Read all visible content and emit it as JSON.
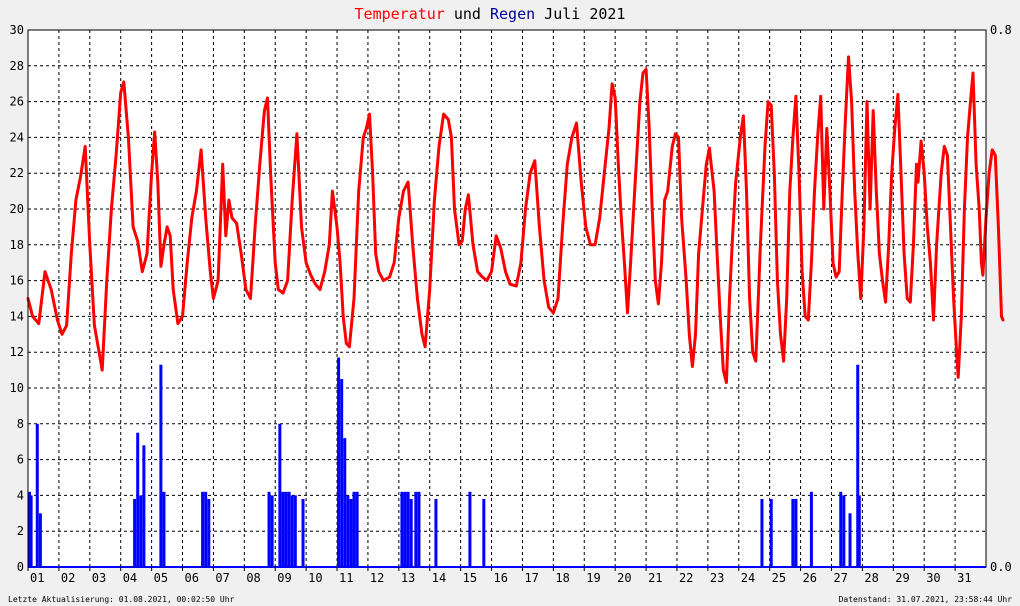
{
  "title": {
    "part1": "Temperatur",
    "part2": " und ",
    "part3": "Regen",
    "part4": " Juli 2021",
    "color1": "#ff0000",
    "color2": "#000000",
    "color3": "#000099",
    "color4": "#000000"
  },
  "footer": {
    "left": "Letzte Aktualisierung: 01.08.2021, 00:02:50 Uhr",
    "right": "Datenstand: 31.07.2021, 23:58:44 Uhr"
  },
  "chart_data": {
    "type": "line",
    "x_unit": "day of July 2021",
    "x_ticks": [
      "01",
      "02",
      "03",
      "04",
      "05",
      "06",
      "07",
      "08",
      "09",
      "10",
      "11",
      "12",
      "13",
      "14",
      "15",
      "16",
      "17",
      "18",
      "19",
      "20",
      "21",
      "22",
      "23",
      "24",
      "25",
      "26",
      "27",
      "28",
      "29",
      "30",
      "31"
    ],
    "xlim": [
      1,
      32
    ],
    "ylim_left": [
      0,
      30
    ],
    "y_ticks_left": [
      "0",
      "2",
      "4",
      "6",
      "8",
      "10",
      "12",
      "14",
      "16",
      "18",
      "20",
      "22",
      "24",
      "26",
      "28",
      "30"
    ],
    "ylim_right": [
      0,
      0.8
    ],
    "y_ticks_right": [
      "0.0",
      "0.8"
    ],
    "grid": true,
    "series": [
      {
        "color": "#ff0000",
        "axis": "left",
        "points": [
          [
            1.0,
            15.0
          ],
          [
            1.15,
            14.0
          ],
          [
            1.35,
            13.6
          ],
          [
            1.55,
            16.5
          ],
          [
            1.75,
            15.5
          ],
          [
            1.95,
            13.8
          ],
          [
            2.1,
            13.0
          ],
          [
            2.25,
            13.5
          ],
          [
            2.4,
            17.5
          ],
          [
            2.55,
            20.5
          ],
          [
            2.7,
            21.8
          ],
          [
            2.85,
            23.5
          ],
          [
            3.0,
            18.0
          ],
          [
            3.15,
            13.5
          ],
          [
            3.3,
            12.0
          ],
          [
            3.4,
            11.0
          ],
          [
            3.55,
            16.0
          ],
          [
            3.7,
            20.0
          ],
          [
            3.85,
            23.0
          ],
          [
            4.0,
            26.5
          ],
          [
            4.1,
            27.1
          ],
          [
            4.25,
            24.0
          ],
          [
            4.4,
            19.0
          ],
          [
            4.55,
            18.2
          ],
          [
            4.7,
            16.5
          ],
          [
            4.85,
            17.5
          ],
          [
            5.0,
            22.0
          ],
          [
            5.1,
            24.3
          ],
          [
            5.2,
            21.5
          ],
          [
            5.3,
            16.8
          ],
          [
            5.4,
            18.0
          ],
          [
            5.5,
            19.0
          ],
          [
            5.6,
            18.5
          ],
          [
            5.7,
            15.5
          ],
          [
            5.85,
            13.6
          ],
          [
            6.0,
            14.0
          ],
          [
            6.15,
            17.0
          ],
          [
            6.3,
            19.5
          ],
          [
            6.45,
            21.0
          ],
          [
            6.6,
            23.3
          ],
          [
            6.75,
            19.5
          ],
          [
            6.9,
            16.5
          ],
          [
            7.0,
            15.0
          ],
          [
            7.15,
            16.0
          ],
          [
            7.3,
            22.5
          ],
          [
            7.4,
            18.5
          ],
          [
            7.5,
            20.5
          ],
          [
            7.6,
            19.5
          ],
          [
            7.75,
            19.2
          ],
          [
            7.9,
            17.5
          ],
          [
            8.05,
            15.5
          ],
          [
            8.2,
            15.0
          ],
          [
            8.35,
            19.0
          ],
          [
            8.5,
            22.5
          ],
          [
            8.65,
            25.5
          ],
          [
            8.75,
            26.2
          ],
          [
            8.85,
            22.0
          ],
          [
            9.0,
            17.0
          ],
          [
            9.1,
            15.5
          ],
          [
            9.25,
            15.3
          ],
          [
            9.4,
            16.0
          ],
          [
            9.55,
            20.5
          ],
          [
            9.7,
            24.2
          ],
          [
            9.85,
            19.0
          ],
          [
            10.0,
            17.0
          ],
          [
            10.15,
            16.3
          ],
          [
            10.3,
            15.8
          ],
          [
            10.45,
            15.5
          ],
          [
            10.6,
            16.5
          ],
          [
            10.75,
            18.0
          ],
          [
            10.85,
            21.0
          ],
          [
            11.0,
            19.0
          ],
          [
            11.1,
            17.0
          ],
          [
            11.2,
            14.0
          ],
          [
            11.3,
            12.5
          ],
          [
            11.4,
            12.3
          ],
          [
            11.55,
            15.0
          ],
          [
            11.7,
            21.0
          ],
          [
            11.85,
            24.0
          ],
          [
            11.95,
            24.5
          ],
          [
            12.05,
            25.3
          ],
          [
            12.15,
            22.0
          ],
          [
            12.25,
            17.5
          ],
          [
            12.35,
            16.5
          ],
          [
            12.5,
            16.0
          ],
          [
            12.7,
            16.2
          ],
          [
            12.85,
            17.0
          ],
          [
            13.0,
            19.5
          ],
          [
            13.15,
            21.0
          ],
          [
            13.3,
            21.5
          ],
          [
            13.45,
            18.0
          ],
          [
            13.6,
            15.0
          ],
          [
            13.75,
            13.0
          ],
          [
            13.85,
            12.3
          ],
          [
            14.0,
            15.5
          ],
          [
            14.15,
            20.5
          ],
          [
            14.3,
            23.5
          ],
          [
            14.45,
            25.3
          ],
          [
            14.6,
            25.0
          ],
          [
            14.7,
            24.0
          ],
          [
            14.8,
            20.0
          ],
          [
            14.95,
            18.0
          ],
          [
            15.05,
            18.2
          ],
          [
            15.15,
            20.0
          ],
          [
            15.25,
            20.8
          ],
          [
            15.4,
            18.0
          ],
          [
            15.55,
            16.5
          ],
          [
            15.7,
            16.2
          ],
          [
            15.85,
            16.0
          ],
          [
            16.0,
            16.5
          ],
          [
            16.15,
            18.5
          ],
          [
            16.3,
            17.8
          ],
          [
            16.45,
            16.5
          ],
          [
            16.6,
            15.8
          ],
          [
            16.8,
            15.7
          ],
          [
            16.95,
            17.0
          ],
          [
            17.1,
            20.0
          ],
          [
            17.25,
            22.0
          ],
          [
            17.4,
            22.7
          ],
          [
            17.55,
            19.0
          ],
          [
            17.7,
            16.0
          ],
          [
            17.85,
            14.5
          ],
          [
            18.0,
            14.2
          ],
          [
            18.15,
            15.0
          ],
          [
            18.3,
            19.0
          ],
          [
            18.45,
            22.5
          ],
          [
            18.6,
            24.0
          ],
          [
            18.75,
            24.8
          ],
          [
            18.9,
            21.5
          ],
          [
            19.05,
            19.0
          ],
          [
            19.2,
            18.0
          ],
          [
            19.35,
            18.0
          ],
          [
            19.5,
            19.5
          ],
          [
            19.65,
            22.0
          ],
          [
            19.8,
            24.5
          ],
          [
            19.9,
            27.0
          ],
          [
            20.0,
            26.2
          ],
          [
            20.1,
            22.5
          ],
          [
            20.2,
            19.5
          ],
          [
            20.3,
            17.0
          ],
          [
            20.4,
            14.2
          ],
          [
            20.5,
            17.0
          ],
          [
            20.65,
            21.5
          ],
          [
            20.8,
            26.0
          ],
          [
            20.9,
            27.6
          ],
          [
            21.0,
            27.8
          ],
          [
            21.1,
            24.5
          ],
          [
            21.2,
            20.0
          ],
          [
            21.3,
            16.0
          ],
          [
            21.4,
            14.7
          ],
          [
            21.5,
            17.0
          ],
          [
            21.6,
            20.5
          ],
          [
            21.7,
            21.0
          ],
          [
            21.85,
            23.5
          ],
          [
            21.95,
            24.2
          ],
          [
            22.05,
            24.0
          ],
          [
            22.15,
            19.5
          ],
          [
            22.3,
            16.0
          ],
          [
            22.4,
            13.0
          ],
          [
            22.5,
            11.2
          ],
          [
            22.6,
            13.0
          ],
          [
            22.7,
            17.5
          ],
          [
            22.85,
            20.5
          ],
          [
            22.95,
            22.5
          ],
          [
            23.05,
            23.4
          ],
          [
            23.2,
            21.0
          ],
          [
            23.3,
            17.5
          ],
          [
            23.4,
            14.0
          ],
          [
            23.5,
            11.0
          ],
          [
            23.6,
            10.3
          ],
          [
            23.7,
            15.0
          ],
          [
            23.8,
            18.5
          ],
          [
            23.9,
            21.5
          ],
          [
            24.05,
            24.0
          ],
          [
            24.15,
            25.2
          ],
          [
            24.25,
            21.0
          ],
          [
            24.35,
            15.0
          ],
          [
            24.45,
            12.0
          ],
          [
            24.55,
            11.5
          ],
          [
            24.7,
            18.0
          ],
          [
            24.85,
            23.5
          ],
          [
            24.95,
            26.0
          ],
          [
            25.05,
            25.8
          ],
          [
            25.15,
            22.0
          ],
          [
            25.25,
            16.0
          ],
          [
            25.35,
            13.0
          ],
          [
            25.45,
            11.5
          ],
          [
            25.55,
            15.0
          ],
          [
            25.65,
            21.0
          ],
          [
            25.75,
            24.0
          ],
          [
            25.85,
            26.3
          ],
          [
            25.95,
            22.0
          ],
          [
            26.05,
            16.5
          ],
          [
            26.15,
            14.0
          ],
          [
            26.25,
            13.8
          ],
          [
            26.35,
            17.0
          ],
          [
            26.45,
            21.0
          ],
          [
            26.55,
            24.0
          ],
          [
            26.65,
            26.3
          ],
          [
            26.75,
            20.0
          ],
          [
            26.85,
            24.5
          ],
          [
            26.95,
            21.0
          ],
          [
            27.05,
            17.0
          ],
          [
            27.15,
            16.2
          ],
          [
            27.25,
            16.5
          ],
          [
            27.35,
            21.0
          ],
          [
            27.45,
            25.0
          ],
          [
            27.55,
            28.5
          ],
          [
            27.65,
            26.0
          ],
          [
            27.75,
            21.0
          ],
          [
            27.85,
            17.5
          ],
          [
            27.95,
            15.0
          ],
          [
            28.05,
            19.0
          ],
          [
            28.15,
            26.0
          ],
          [
            28.25,
            20.0
          ],
          [
            28.35,
            25.5
          ],
          [
            28.45,
            21.0
          ],
          [
            28.55,
            17.5
          ],
          [
            28.65,
            16.0
          ],
          [
            28.75,
            14.8
          ],
          [
            28.85,
            18.0
          ],
          [
            28.95,
            22.0
          ],
          [
            29.05,
            24.5
          ],
          [
            29.15,
            26.4
          ],
          [
            29.25,
            22.0
          ],
          [
            29.35,
            17.5
          ],
          [
            29.45,
            15.0
          ],
          [
            29.55,
            14.8
          ],
          [
            29.65,
            18.0
          ],
          [
            29.75,
            22.5
          ],
          [
            29.8,
            21.5
          ],
          [
            29.9,
            23.8
          ],
          [
            30.0,
            22.0
          ],
          [
            30.1,
            19.0
          ],
          [
            30.2,
            17.0
          ],
          [
            30.3,
            13.8
          ],
          [
            30.4,
            18.0
          ],
          [
            30.55,
            22.0
          ],
          [
            30.65,
            23.5
          ],
          [
            30.75,
            23.0
          ],
          [
            30.85,
            19.0
          ],
          [
            30.95,
            15.0
          ],
          [
            31.05,
            12.0
          ],
          [
            31.1,
            10.6
          ],
          [
            31.2,
            14.0
          ],
          [
            31.3,
            20.0
          ],
          [
            31.4,
            24.0
          ],
          [
            31.5,
            26.0
          ],
          [
            31.58,
            27.6
          ],
          [
            31.68,
            22.5
          ],
          [
            31.78,
            20.0
          ],
          [
            31.85,
            17.0
          ],
          [
            31.9,
            16.3
          ],
          [
            32.0,
            19.5
          ],
          [
            32.1,
            22.0
          ],
          [
            32.2,
            23.3
          ],
          [
            32.3,
            23.0
          ],
          [
            32.4,
            19.0
          ],
          [
            32.5,
            14.0
          ],
          [
            32.55,
            13.8
          ]
        ]
      },
      {
        "color": "#0000ff",
        "axis": "right",
        "bars": [
          [
            1.05,
            4.2
          ],
          [
            1.1,
            4.0
          ],
          [
            1.3,
            8.0
          ],
          [
            1.4,
            3.0
          ],
          [
            4.45,
            3.8
          ],
          [
            4.55,
            7.5
          ],
          [
            4.65,
            4.0
          ],
          [
            4.75,
            6.8
          ],
          [
            5.3,
            11.3
          ],
          [
            5.4,
            4.2
          ],
          [
            6.65,
            4.2
          ],
          [
            6.75,
            4.2
          ],
          [
            6.85,
            3.8
          ],
          [
            8.8,
            4.2
          ],
          [
            8.9,
            4.0
          ],
          [
            9.15,
            8.0
          ],
          [
            9.25,
            4.2
          ],
          [
            9.35,
            4.2
          ],
          [
            9.45,
            4.2
          ],
          [
            9.55,
            4.0
          ],
          [
            9.65,
            4.0
          ],
          [
            9.9,
            3.8
          ],
          [
            11.05,
            11.7
          ],
          [
            11.15,
            10.5
          ],
          [
            11.25,
            7.2
          ],
          [
            11.35,
            4.0
          ],
          [
            11.45,
            3.8
          ],
          [
            11.55,
            4.2
          ],
          [
            11.65,
            4.2
          ],
          [
            13.1,
            4.2
          ],
          [
            13.2,
            4.2
          ],
          [
            13.3,
            4.2
          ],
          [
            13.4,
            3.8
          ],
          [
            13.55,
            4.2
          ],
          [
            13.65,
            4.2
          ],
          [
            14.2,
            3.8
          ],
          [
            15.3,
            4.2
          ],
          [
            15.75,
            3.8
          ],
          [
            24.75,
            3.8
          ],
          [
            25.05,
            3.8
          ],
          [
            25.75,
            3.8
          ],
          [
            25.85,
            3.8
          ],
          [
            26.35,
            4.2
          ],
          [
            27.3,
            4.2
          ],
          [
            27.4,
            4.0
          ],
          [
            27.6,
            3.0
          ],
          [
            27.85,
            11.3
          ],
          [
            27.9,
            4.0
          ]
        ]
      }
    ]
  }
}
